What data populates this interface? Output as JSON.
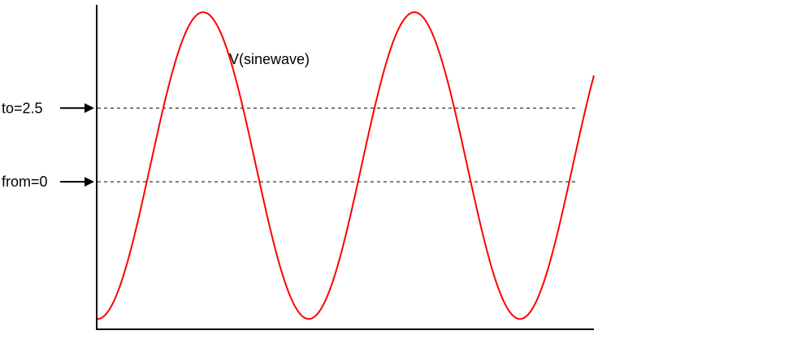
{
  "chart_data": {
    "type": "line",
    "title": "",
    "xlabel": "",
    "ylabel": "",
    "grid": false,
    "ylim": [
      -5.0,
      6.0
    ],
    "xlim": [
      0,
      2
    ],
    "series": [
      {
        "name": "V(sinewave)",
        "color": "#ff0000",
        "function": "sine",
        "amplitude": 5.2,
        "offset": 0.55,
        "cycles": 2.35,
        "start_phase_deg": -90
      }
    ],
    "reference_lines": [
      {
        "label": "to=2.5",
        "value": 2.5,
        "style": "dashed",
        "color": "#000000"
      },
      {
        "label": "from=0",
        "value": 0,
        "style": "dashed",
        "color": "#000000"
      }
    ]
  }
}
